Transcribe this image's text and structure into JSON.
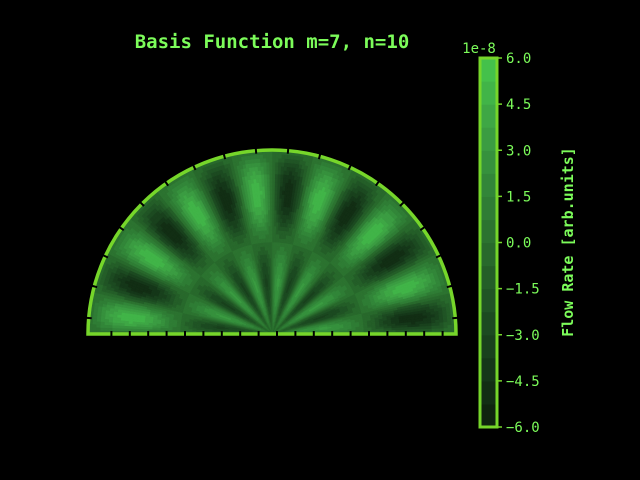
{
  "colors": {
    "background": "#000000",
    "text": "#7cfc5a",
    "frame": "#76d62a",
    "level_ramp": [
      "#0d1f0d",
      "#16391a",
      "#1f5224",
      "#2a6e2e",
      "#33883a",
      "#3ea545",
      "#45c84c"
    ]
  },
  "chart_data": {
    "type": "heatmap",
    "subtype": "polar-contour-half-disk",
    "title": "Basis Function m=7, n=10",
    "theta_range_deg": [
      0,
      180
    ],
    "radial_range": [
      0,
      1
    ],
    "angular_lobes": 14,
    "radial_lobes": 2,
    "colorbar": {
      "label": "Flow Rate [arb.units]",
      "offset_label": "1e-8",
      "ticks": [
        "6.0",
        "4.5",
        "3.0",
        "1.5",
        "0.0",
        "−1.5",
        "−3.0",
        "−4.5",
        "−6.0"
      ],
      "tick_values": [
        6.0,
        4.5,
        3.0,
        1.5,
        0.0,
        -1.5,
        -3.0,
        -4.5,
        -6.0
      ],
      "range": [
        -6.0,
        6.0
      ],
      "levels": 16
    }
  }
}
